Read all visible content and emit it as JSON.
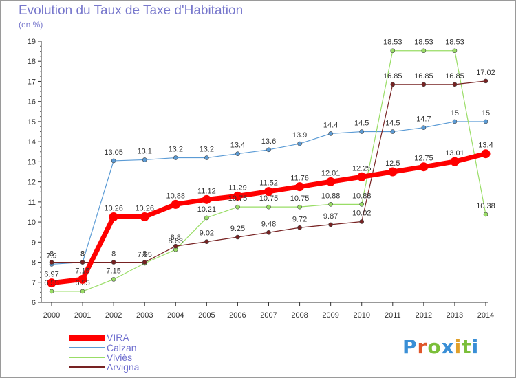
{
  "header": {
    "title": "Evolution du Taux de Taxe d'Habitation",
    "subtitle": "(en %)"
  },
  "brand": {
    "letters": [
      "P",
      "r",
      "o",
      "x",
      "i",
      "t",
      "i"
    ],
    "colors": [
      "#3a8fd6",
      "#e0562a",
      "#7bbf3a",
      "#3a8fd6",
      "#e0a02a",
      "#7bbf3a",
      "#3a8fd6"
    ]
  },
  "chart_data": {
    "type": "line",
    "title": "Evolution du Taux de Taxe d'Habitation",
    "ylabel": "(en %)",
    "xlabel": "",
    "x": [
      2000,
      2001,
      2002,
      2003,
      2004,
      2005,
      2006,
      2007,
      2008,
      2009,
      2010,
      2011,
      2012,
      2013,
      2014
    ],
    "ylim": [
      6,
      19
    ],
    "y_ticks": [
      6,
      7,
      8,
      9,
      10,
      11,
      12,
      13,
      14,
      15,
      16,
      17,
      18,
      19
    ],
    "grid": false,
    "legend_position": "bottom-left",
    "series": [
      {
        "name": "VIRA",
        "color": "#ff0000",
        "values": [
          6.97,
          7.15,
          10.26,
          10.26,
          10.88,
          11.12,
          11.29,
          11.52,
          11.76,
          12.01,
          12.25,
          12.5,
          12.75,
          13.01,
          13.4
        ],
        "labels": [
          "6.97",
          "7.15",
          "10.26",
          "10.26",
          "10.88",
          "11.12",
          "11.29",
          "11.52",
          "11.76",
          "12.01",
          "12.25",
          "12.5",
          "12.75",
          "13.01",
          "13.4"
        ]
      },
      {
        "name": "Calzan",
        "color": "#5b9bd5",
        "values": [
          7.9,
          8,
          13.05,
          13.1,
          13.2,
          13.2,
          13.4,
          13.6,
          13.9,
          14.4,
          14.5,
          14.5,
          14.7,
          15,
          15
        ],
        "labels": [
          "7.9",
          "8",
          "13.05",
          "13.1",
          "13.2",
          "13.2",
          "13.4",
          "13.6",
          "13.9",
          "14.4",
          "14.5",
          "14.5",
          "14.7",
          "15",
          "15"
        ]
      },
      {
        "name": "Viviès",
        "color": "#99dd66",
        "values": [
          6.55,
          6.55,
          7.15,
          7.95,
          8.63,
          10.21,
          10.75,
          10.75,
          10.75,
          10.88,
          10.88,
          18.53,
          18.53,
          18.53,
          10.38
        ],
        "labels": [
          "6.55",
          "6.55",
          "7.15",
          "7.95",
          "8.63",
          "10.21",
          "10.75",
          "10.75",
          "10.75",
          "10.88",
          "10.88",
          "18.53",
          "18.53",
          "18.53",
          "10.38"
        ]
      },
      {
        "name": "Arvigna",
        "color": "#772222",
        "values": [
          8,
          8,
          8,
          8,
          8.8,
          9.02,
          9.25,
          9.48,
          9.72,
          9.87,
          10.02,
          16.85,
          16.85,
          16.85,
          17.02
        ],
        "labels": [
          "8",
          "8",
          "8",
          "8",
          "8.8",
          "9.02",
          "9.25",
          "9.48",
          "9.72",
          "9.87",
          "10.02",
          "16.85",
          "16.85",
          "16.85",
          "17.02"
        ]
      }
    ]
  }
}
